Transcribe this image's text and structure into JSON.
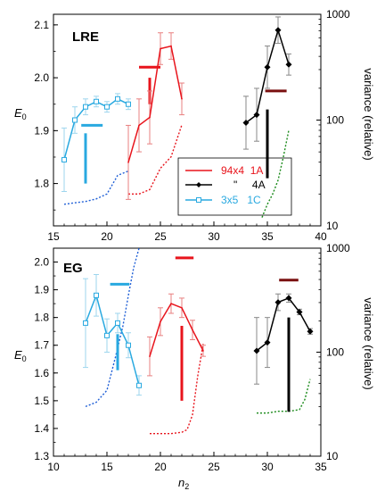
{
  "figure": {
    "y_axis_label": "E",
    "y_axis_label_sub": "0",
    "x_axis_label": "n",
    "x_axis_label_sub": "2",
    "right_axis_label": "variance (relative)"
  },
  "chart_data": [
    {
      "type": "line",
      "title": "LRE",
      "xlim": [
        15,
        40
      ],
      "ylim": [
        1.72,
        2.12
      ],
      "y2lim_log": [
        10,
        1000
      ],
      "x_ticks": [
        "15",
        "20",
        "25",
        "30",
        "35",
        "40"
      ],
      "y_ticks": [
        "1.8",
        "1.9",
        "2.0",
        "2.1"
      ],
      "y2_ticks": [
        "10",
        "100",
        "1000"
      ],
      "legend": {
        "entries": [
          {
            "label": "94x4  1A",
            "color": "#e8141c",
            "marker": "none"
          },
          {
            "label": "\"     4A",
            "color": "#000000",
            "marker": "diamond"
          },
          {
            "label": "3x5   1C",
            "color": "#29a9e0",
            "marker": "square-open"
          }
        ]
      },
      "series": [
        {
          "name": "94x4  1A",
          "color": "#e8141c",
          "x": [
            22,
            23,
            24,
            25,
            26,
            27
          ],
          "y": [
            1.84,
            1.91,
            1.925,
            2.055,
            2.06,
            1.96
          ],
          "err": [
            0.07,
            0.05,
            0.05,
            0.03,
            0.025,
            0.03
          ],
          "reference": {
            "x": [
              23,
              25
            ],
            "y": 2.02
          },
          "vbar": {
            "x": 24,
            "y_low": 1.95,
            "y_high": 2.0
          },
          "variance": {
            "x": [
              22,
              23,
              24,
              25,
              26,
              27
            ],
            "y": [
              20,
              20,
              22,
              35,
              45,
              90
            ]
          }
        },
        {
          "name": "\"     4A",
          "color": "#000000",
          "x": [
            33,
            34,
            35,
            36,
            37
          ],
          "y": [
            1.915,
            1.93,
            2.02,
            2.09,
            2.025
          ],
          "err": [
            0.05,
            0.05,
            0.04,
            0.025,
            0.02
          ],
          "reference": {
            "x": [
              34.8,
              36.8
            ],
            "y": 1.975
          },
          "vbar": {
            "x": 35,
            "y_low": 1.81,
            "y_high": 1.94
          },
          "variance": {
            "x": [
              34.5,
              35,
              35.5,
              36,
              36.5,
              37
            ],
            "y": [
              12,
              16,
              20,
              27,
              45,
              80
            ]
          }
        },
        {
          "name": "3x5   1C",
          "color": "#29a9e0",
          "x": [
            16,
            17,
            18,
            19,
            20,
            21,
            22
          ],
          "y": [
            1.845,
            1.92,
            1.945,
            1.955,
            1.945,
            1.96,
            1.95
          ],
          "err": [
            0.06,
            0.025,
            0.015,
            0.01,
            0.01,
            0.01,
            0.01
          ],
          "reference": {
            "x": [
              17.6,
              19.6
            ],
            "y": 1.91
          },
          "vbar": {
            "x": 18,
            "y_low": 1.8,
            "y_high": 1.895
          },
          "variance": {
            "x": [
              16,
              17,
              18,
              19,
              20,
              21,
              22
            ],
            "y": [
              16,
              16.5,
              17,
              18,
              20,
              30,
              33
            ]
          }
        }
      ]
    },
    {
      "type": "line",
      "title": "EG",
      "xlim": [
        10,
        35
      ],
      "ylim": [
        1.3,
        2.05
      ],
      "y2lim_log": [
        10,
        1000
      ],
      "x_ticks": [
        "10",
        "15",
        "20",
        "25",
        "30",
        "35"
      ],
      "y_ticks": [
        "1.3",
        "1.4",
        "1.5",
        "1.6",
        "1.7",
        "1.8",
        "1.9",
        "2.0"
      ],
      "y2_ticks": [
        "10",
        "100",
        "1000"
      ],
      "series": [
        {
          "name": "3x5 1C",
          "color": "#29a9e0",
          "x": [
            13,
            14,
            15,
            16,
            17,
            18
          ],
          "y": [
            1.78,
            1.88,
            1.735,
            1.78,
            1.7,
            1.555
          ],
          "err": [
            0.16,
            0.075,
            0.06,
            0.035,
            0.045,
            0.035
          ],
          "reference": {
            "x": [
              15.3,
              17.1
            ],
            "y": 1.92
          },
          "vbar": {
            "x": 16,
            "y_low": 1.61,
            "y_high": 1.74
          },
          "variance": {
            "x": [
              13,
              14,
              15,
              15.8,
              16.5,
              17,
              17.5,
              18
            ],
            "y": [
              30,
              33,
              43,
              90,
              180,
              350,
              650,
              1000
            ]
          }
        },
        {
          "name": "94x4 1A",
          "color": "#e8141c",
          "x": [
            19,
            20,
            21,
            22,
            23,
            24
          ],
          "y": [
            1.66,
            1.785,
            1.85,
            1.835,
            1.755,
            1.68
          ],
          "err": [
            0.07,
            0.05,
            0.035,
            0.035,
            0.035,
            0.02
          ],
          "reference": {
            "x": [
              21.4,
              23.1
            ],
            "y": 2.015
          },
          "vbar": {
            "x": 22,
            "y_low": 1.5,
            "y_high": 1.77
          },
          "variance": {
            "x": [
              19,
              20,
              21,
              22,
              22.5,
              23,
              23.5,
              24
            ],
            "y": [
              16.5,
              16.5,
              16.5,
              17,
              18,
              25,
              60,
              120
            ]
          }
        },
        {
          "name": "4A",
          "color": "#000000",
          "x": [
            29,
            30,
            31,
            32,
            33,
            34
          ],
          "y": [
            1.68,
            1.71,
            1.855,
            1.87,
            1.82,
            1.75
          ],
          "err": [
            0.12,
            0.09,
            0.03,
            0.015,
            0.01,
            0.01
          ],
          "reference": {
            "x": [
              31.1,
              32.9
            ],
            "y": 1.935
          },
          "vbar": {
            "x": 32,
            "y_low": 1.46,
            "y_high": 1.8
          },
          "variance": {
            "x": [
              29,
              30,
              31,
              32,
              33,
              33.5,
              34
            ],
            "y": [
              26,
              26,
              27,
              27,
              28,
              35,
              55
            ]
          }
        }
      ]
    }
  ]
}
